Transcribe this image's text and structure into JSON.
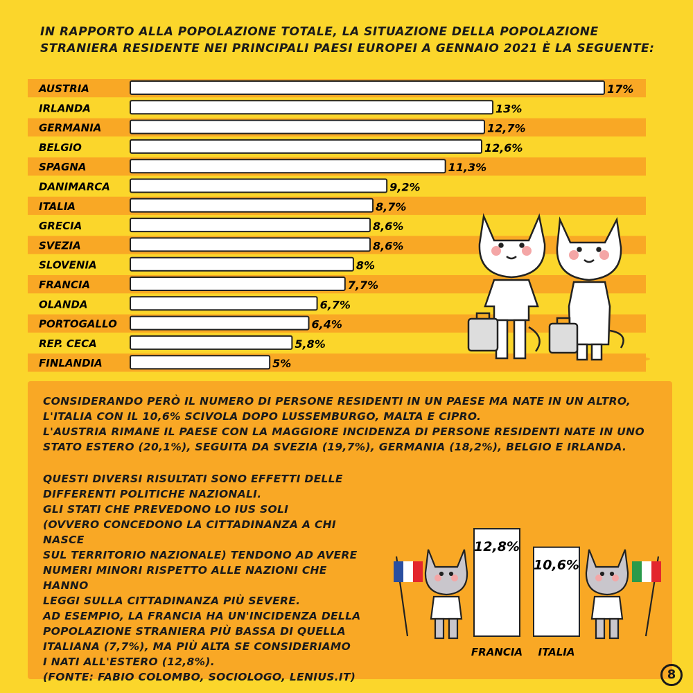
{
  "intro_text": "In rapporto alla popolazione totale, la situazione della popolazione straniera residente nei principali paesi europei a gennaio 2021 è la seguente:",
  "chart_data": [
    {
      "type": "bar",
      "orientation": "horizontal",
      "categories": [
        "Austria",
        "Irlanda",
        "Germania",
        "Belgio",
        "Spagna",
        "Danimarca",
        "Italia",
        "Grecia",
        "Svezia",
        "Slovenia",
        "Francia",
        "Olanda",
        "Portogallo",
        "Rep. Ceca",
        "Finlandia"
      ],
      "values": [
        17,
        13,
        12.7,
        12.6,
        11.3,
        9.2,
        8.7,
        8.6,
        8.6,
        8,
        7.7,
        6.7,
        6.4,
        5.8,
        5
      ],
      "value_labels": [
        "17%",
        "13%",
        "12,7%",
        "12,6%",
        "11,3%",
        "9,2%",
        "8,7%",
        "8,6%",
        "8,6%",
        "8%",
        "7,7%",
        "6,7%",
        "6,4%",
        "5,8%",
        "5%"
      ],
      "xlim": [
        0,
        17
      ],
      "bar_color": "#ffffff",
      "stripe_color": "#f9a825"
    },
    {
      "type": "bar",
      "orientation": "vertical",
      "categories": [
        "Francia",
        "Italia"
      ],
      "values": [
        12.8,
        10.6
      ],
      "value_labels": [
        "12,8%",
        "10,6%"
      ],
      "bar_color": "#ffffff"
    }
  ],
  "para1": "Considerando però il numero di persone residenti in un paese ma nate in un altro,\nl'Italia con il 10,6% scivola dopo Lussemburgo, Malta e Cipro.\nL'Austria rimane il paese con la maggiore incidenza di persone residenti nate in uno\nstato estero (20,1%), seguita da Svezia (19,7%), Germania (18,2%), Belgio e Irlanda.",
  "para2": "Questi diversi risultati sono effetti delle\ndifferenti politiche nazionali.\nGli stati che prevedono lo ius soli\n(ovvero concedono la cittadinanza a chi nasce\nsul territorio nazionale) tendono ad avere\nnumeri minori rispetto alle nazioni che hanno\nleggi sulla cittadinanza più severe.\nAd esempio, la Francia ha un'incidenza della\npopolazione straniera più bassa di quella\nitaliana (7,7%), ma più alta se consideriamo\ni nati all'estero (12,8%).\n(Fonte: Fabio Colombo, sociologo, lenius.it)",
  "page_number": "8",
  "colors": {
    "background": "#fbd62b",
    "panel": "#f9a825",
    "flag_france": [
      "#2a4fa0",
      "#ffffff",
      "#e3262d"
    ],
    "flag_italy": [
      "#2a9a4a",
      "#ffffff",
      "#e3262d"
    ]
  },
  "icons": [
    "cat-traveler-male-icon",
    "cat-traveler-female-icon",
    "suitcase-icon",
    "cat-flag-france-icon",
    "cat-flag-italy-icon",
    "france-flag-icon",
    "italy-flag-icon"
  ]
}
